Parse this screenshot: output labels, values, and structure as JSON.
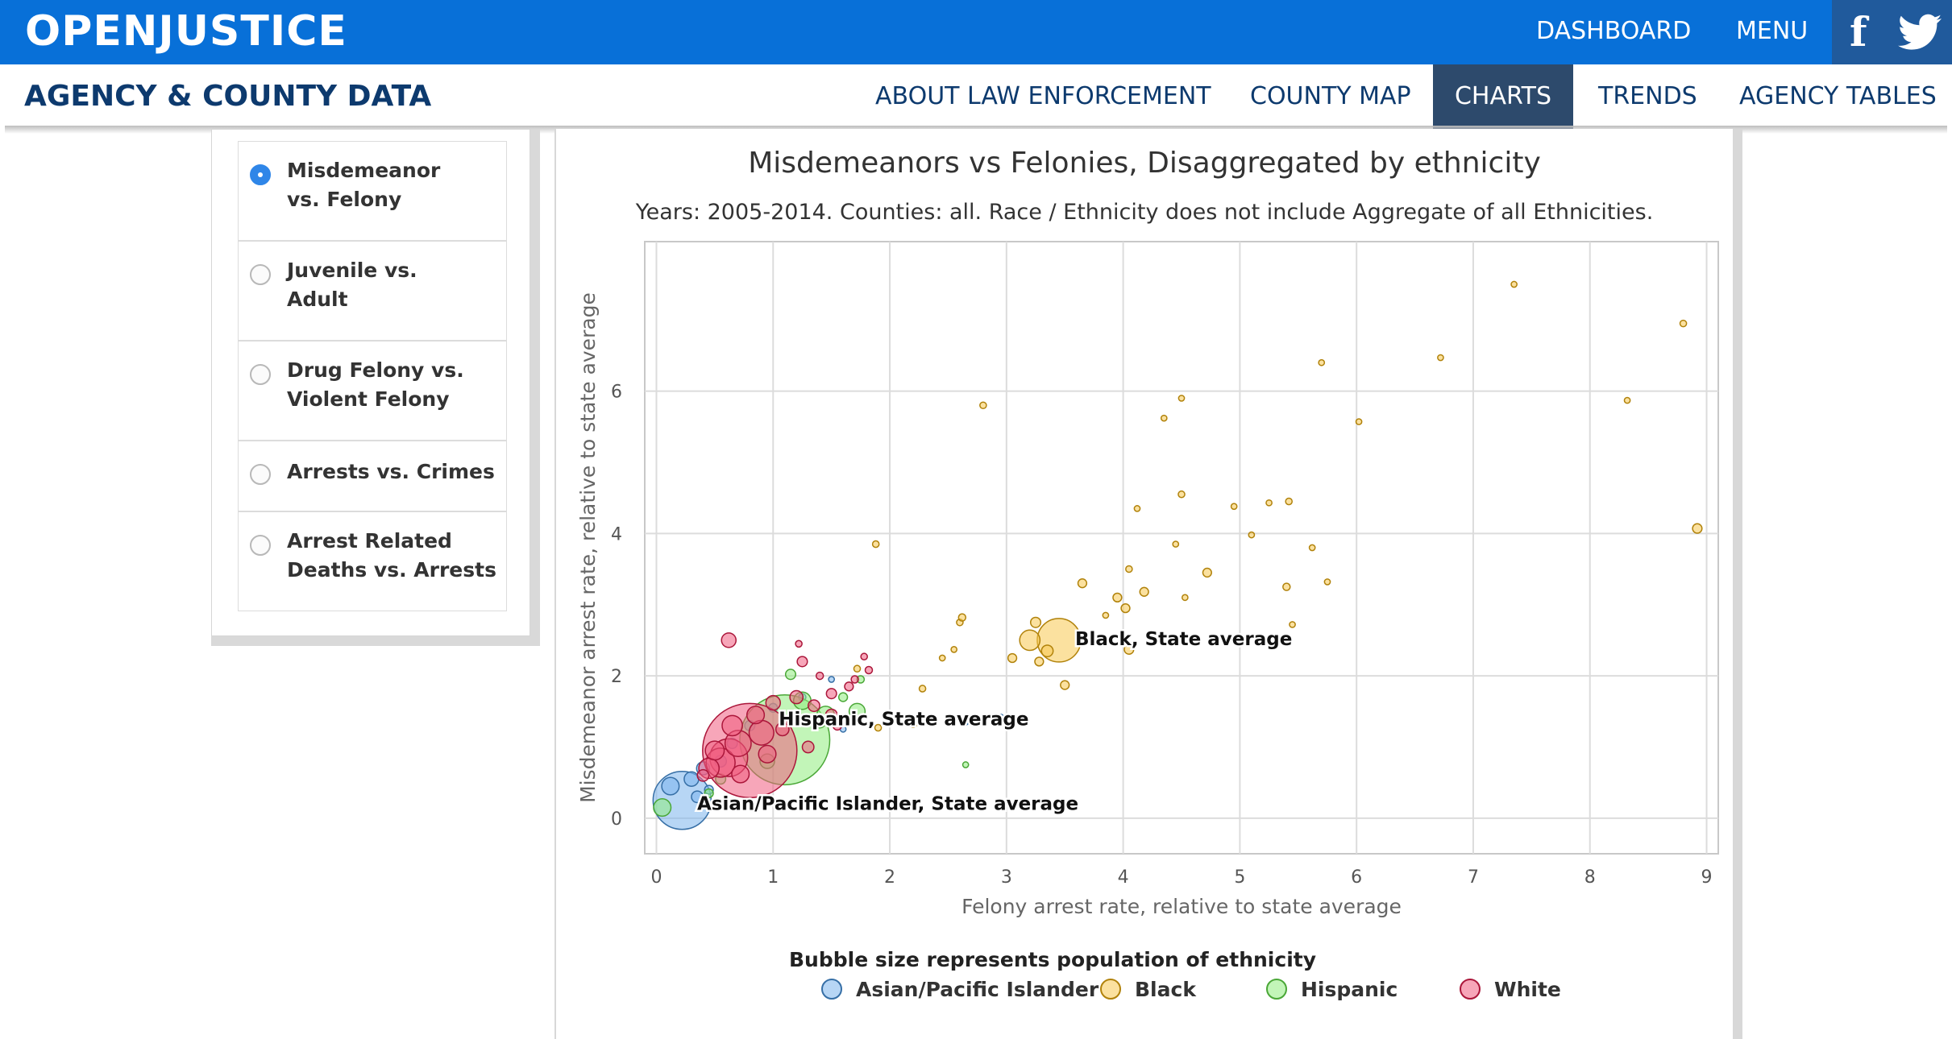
{
  "header": {
    "logo": "OPENJUSTICE",
    "nav": [
      {
        "label": "DASHBOARD"
      },
      {
        "label": "MENU"
      }
    ],
    "social": [
      "facebook-icon",
      "twitter-icon"
    ],
    "brand_color": "#0870d8"
  },
  "subheader": {
    "title": "AGENCY & COUNTY DATA",
    "tabs": [
      {
        "label": "ABOUT LAW ENFORCEMENT",
        "active": false
      },
      {
        "label": "COUNTY MAP",
        "active": false
      },
      {
        "label": "CHARTS",
        "active": true
      },
      {
        "label": "TRENDS",
        "active": false
      },
      {
        "label": "AGENCY TABLES",
        "active": false
      }
    ]
  },
  "sidebar": {
    "options": [
      {
        "label_line1": "Misdemeanor",
        "label_line2": "vs. Felony",
        "selected": true
      },
      {
        "label_line1": "Juvenile vs.",
        "label_line2": "Adult",
        "selected": false
      },
      {
        "label_line1": "Drug Felony vs.",
        "label_line2": "Violent Felony",
        "selected": false
      },
      {
        "label_line1": "Arrests vs. Crimes",
        "label_line2": "",
        "selected": false
      },
      {
        "label_line1": "Arrest Related",
        "label_line2": "Deaths vs. Arrests",
        "selected": false
      }
    ]
  },
  "chart_data": {
    "type": "scatter",
    "title": "Misdemeanors vs Felonies, Disaggregated by ethnicity",
    "subtitle": "Years: 2005-2014. Counties: all. Race / Ethnicity does not include Aggregate of all Ethnicities.",
    "xlabel": "Felony arrest rate, relative to state average",
    "ylabel": "Misdemeanor arrest rate, relative to state average",
    "xlim": [
      -0.1,
      9.1
    ],
    "ylim": [
      -0.5,
      8.1
    ],
    "x_ticks": [
      0,
      1,
      2,
      3,
      4,
      5,
      6,
      7,
      8,
      9
    ],
    "y_ticks": [
      0,
      2,
      4,
      6
    ],
    "grid": true,
    "legend_title": "Bubble size represents population of ethnicity",
    "legend_position": "bottom",
    "series": [
      {
        "name": "Asian/Pacific Islander",
        "color": "#7cb5ec",
        "points": [
          [
            0.22,
            0.25,
            4.0
          ],
          [
            0.12,
            0.45,
            1.2
          ],
          [
            0.3,
            0.55,
            1.0
          ],
          [
            0.4,
            0.7,
            0.9
          ],
          [
            0.55,
            0.8,
            0.8
          ],
          [
            0.65,
            1.05,
            0.7
          ],
          [
            0.8,
            1.3,
            0.7
          ],
          [
            1.0,
            1.55,
            0.6
          ],
          [
            1.25,
            1.7,
            0.5
          ],
          [
            1.5,
            1.95,
            0.4
          ],
          [
            1.6,
            1.25,
            0.4
          ],
          [
            2.65,
            1.35,
            0.4
          ],
          [
            2.95,
            1.42,
            0.4
          ],
          [
            0.45,
            0.4,
            0.6
          ],
          [
            0.35,
            0.3,
            0.8
          ]
        ]
      },
      {
        "name": "Black",
        "color": "#f7c850",
        "points": [
          [
            3.45,
            2.5,
            3.0
          ],
          [
            7.35,
            7.5,
            0.4
          ],
          [
            8.8,
            6.95,
            0.45
          ],
          [
            2.8,
            5.8,
            0.45
          ],
          [
            5.7,
            6.4,
            0.4
          ],
          [
            6.72,
            6.47,
            0.4
          ],
          [
            4.5,
            5.9,
            0.4
          ],
          [
            4.35,
            5.62,
            0.4
          ],
          [
            6.02,
            5.57,
            0.4
          ],
          [
            8.32,
            5.87,
            0.4
          ],
          [
            8.92,
            4.07,
            0.65
          ],
          [
            1.88,
            3.85,
            0.45
          ],
          [
            4.5,
            4.55,
            0.45
          ],
          [
            4.95,
            4.38,
            0.4
          ],
          [
            5.25,
            4.43,
            0.4
          ],
          [
            5.42,
            4.45,
            0.45
          ],
          [
            4.12,
            4.35,
            0.4
          ],
          [
            4.45,
            3.85,
            0.4
          ],
          [
            5.1,
            3.98,
            0.4
          ],
          [
            5.62,
            3.8,
            0.4
          ],
          [
            4.05,
            3.5,
            0.45
          ],
          [
            4.72,
            3.45,
            0.6
          ],
          [
            3.65,
            3.3,
            0.6
          ],
          [
            5.4,
            3.25,
            0.5
          ],
          [
            5.75,
            3.32,
            0.4
          ],
          [
            3.95,
            3.1,
            0.6
          ],
          [
            4.18,
            3.18,
            0.6
          ],
          [
            4.02,
            2.95,
            0.6
          ],
          [
            4.53,
            3.1,
            0.4
          ],
          [
            3.85,
            2.85,
            0.4
          ],
          [
            3.25,
            2.75,
            0.7
          ],
          [
            2.6,
            2.75,
            0.45
          ],
          [
            5.45,
            2.72,
            0.4
          ],
          [
            3.2,
            2.5,
            1.4
          ],
          [
            3.35,
            2.35,
            0.8
          ],
          [
            2.45,
            2.25,
            0.4
          ],
          [
            2.55,
            2.37,
            0.4
          ],
          [
            3.28,
            2.2,
            0.6
          ],
          [
            3.05,
            2.25,
            0.6
          ],
          [
            4.05,
            2.37,
            0.65
          ],
          [
            3.5,
            1.87,
            0.6
          ],
          [
            2.28,
            1.82,
            0.45
          ],
          [
            2.2,
            1.35,
            0.7
          ],
          [
            1.9,
            1.27,
            0.45
          ],
          [
            1.72,
            2.1,
            0.45
          ],
          [
            2.62,
            2.82,
            0.5
          ]
        ]
      },
      {
        "name": "Hispanic",
        "color": "#90ed7d",
        "points": [
          [
            1.1,
            1.1,
            6.2
          ],
          [
            0.05,
            0.15,
            1.2
          ],
          [
            1.72,
            1.5,
            1.1
          ],
          [
            1.45,
            1.45,
            1.2
          ],
          [
            1.25,
            1.65,
            1.2
          ],
          [
            1.15,
            2.02,
            0.7
          ],
          [
            1.75,
            1.95,
            0.5
          ],
          [
            1.6,
            1.7,
            0.6
          ],
          [
            1.4,
            1.35,
            0.8
          ],
          [
            2.65,
            0.75,
            0.4
          ],
          [
            0.45,
            0.35,
            0.6
          ],
          [
            0.55,
            0.55,
            0.7
          ],
          [
            0.95,
            0.8,
            1.0
          ]
        ]
      },
      {
        "name": "White",
        "color": "#f15c80",
        "points": [
          [
            0.8,
            0.95,
            6.5
          ],
          [
            0.62,
            0.85,
            2.6
          ],
          [
            0.55,
            0.78,
            2.0
          ],
          [
            0.7,
            1.05,
            1.8
          ],
          [
            0.9,
            1.2,
            1.7
          ],
          [
            0.45,
            0.7,
            1.4
          ],
          [
            0.5,
            0.95,
            1.3
          ],
          [
            0.65,
            1.3,
            1.4
          ],
          [
            0.85,
            1.45,
            1.2
          ],
          [
            1.0,
            1.62,
            1.0
          ],
          [
            1.2,
            1.7,
            0.9
          ],
          [
            1.35,
            1.58,
            0.8
          ],
          [
            1.5,
            1.75,
            0.7
          ],
          [
            1.65,
            1.85,
            0.6
          ],
          [
            1.4,
            2.0,
            0.5
          ],
          [
            1.25,
            2.2,
            0.7
          ],
          [
            1.78,
            2.27,
            0.45
          ],
          [
            1.7,
            1.95,
            0.5
          ],
          [
            1.82,
            2.08,
            0.5
          ],
          [
            1.22,
            2.45,
            0.45
          ],
          [
            0.62,
            2.5,
            1.0
          ],
          [
            1.08,
            1.25,
            0.9
          ],
          [
            1.5,
            1.45,
            0.8
          ],
          [
            0.72,
            0.62,
            1.2
          ],
          [
            0.4,
            0.6,
            0.8
          ],
          [
            1.55,
            1.3,
            0.6
          ],
          [
            1.3,
            1.0,
            0.8
          ],
          [
            0.95,
            0.9,
            1.2
          ]
        ]
      }
    ],
    "annotations": [
      {
        "text": "Black, State average",
        "x": 3.45,
        "y": 2.5
      },
      {
        "text": "Hispanic, State average",
        "x": 0.8,
        "y": 1.1
      },
      {
        "text": "Asian/Pacific Islander, State average",
        "x": 0.1,
        "y": 0.25
      }
    ]
  }
}
